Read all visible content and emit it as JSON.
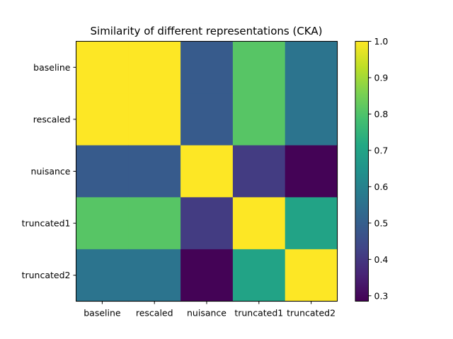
{
  "chart_data": {
    "type": "heatmap",
    "title": "Similarity of different representations (CKA)",
    "xlabel": "",
    "ylabel": "",
    "x_categories": [
      "baseline",
      "rescaled",
      "nuisance",
      "truncated1",
      "truncated2"
    ],
    "y_categories": [
      "baseline",
      "rescaled",
      "nuisance",
      "truncated1",
      "truncated2"
    ],
    "matrix": [
      [
        1.0,
        1.0,
        0.49,
        0.81,
        0.56
      ],
      [
        1.0,
        1.0,
        0.49,
        0.81,
        0.56
      ],
      [
        0.49,
        0.49,
        1.0,
        0.41,
        0.29
      ],
      [
        0.81,
        0.81,
        0.41,
        1.0,
        0.7
      ],
      [
        0.56,
        0.56,
        0.29,
        0.7,
        1.0
      ]
    ],
    "colormap": "viridis",
    "colorbar": {
      "min": 0.285,
      "max": 1.0,
      "ticks": [
        0.3,
        0.4,
        0.5,
        0.6,
        0.7,
        0.8,
        0.9,
        1.0
      ],
      "tick_labels": [
        "0.3",
        "0.4",
        "0.5",
        "0.6",
        "0.7",
        "0.8",
        "0.9",
        "1.0"
      ]
    },
    "grid": false
  }
}
